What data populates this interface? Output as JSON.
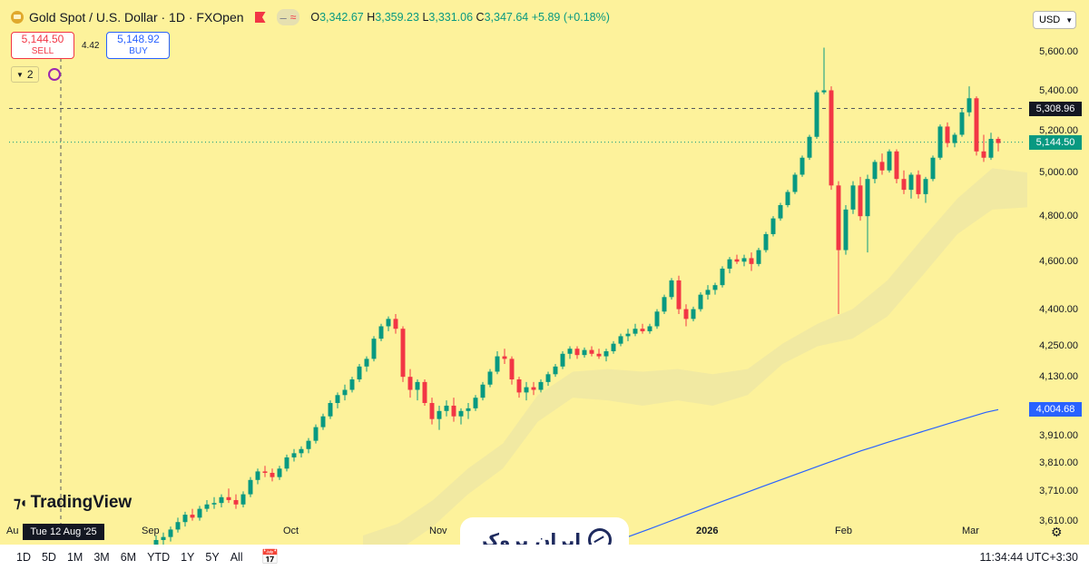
{
  "header": {
    "title": "Gold Spot / U.S. Dollar · 1D · FXOpen",
    "ohlc_o_label": "O",
    "ohlc_o": "3,342.67",
    "ohlc_h_label": "H",
    "ohlc_h": "3,359.23",
    "ohlc_l_label": "L",
    "ohlc_l": "3,331.06",
    "ohlc_c_label": "C",
    "ohlc_c": "3,347.64",
    "ohlc_change": "+5.89 (+0.18%)",
    "pill_icon": "≈"
  },
  "trade": {
    "sell_price": "5,144.50",
    "sell_label": "SELL",
    "spread": "4.42",
    "buy_price": "5,148.92",
    "buy_label": "BUY"
  },
  "indicators": {
    "count": "2"
  },
  "currency": "USD",
  "price_axis": {
    "labels": [
      "5,600.00",
      "5,400.00",
      "5,200.00",
      "5,000.00",
      "4,800.00",
      "4,600.00",
      "4,400.00",
      "4,250.00",
      "4,130.00",
      "3,910.00",
      "3,810.00",
      "3,710.00",
      "3,610.00"
    ],
    "crosshair_price": "5,308.96",
    "last_price": "5,144.50",
    "ma_price": "4,004.68"
  },
  "time_axis": {
    "labels": [
      "Au",
      "Sep",
      "Oct",
      "Nov",
      "2026",
      "Feb",
      "Mar"
    ],
    "crosshair_date": "Tue 12 Aug '25"
  },
  "watermark": "TradingView",
  "brand": "ایران بروکر",
  "range_buttons": [
    "1D",
    "5D",
    "1M",
    "3M",
    "6M",
    "YTD",
    "1Y",
    "5Y",
    "All"
  ],
  "clock": "11:34:44 UTC+3:30",
  "colors": {
    "bg": "#fdf29b",
    "up": "#089981",
    "down": "#f23645",
    "ma": "#2962ff",
    "cloud": "#efe8a3"
  },
  "chart_data": {
    "type": "candlestick",
    "symbol": "Gold Spot / U.S. Dollar",
    "interval": "1D",
    "ylim": [
      3560,
      5680
    ],
    "log_scale": true,
    "series": [
      {
        "name": "XAUUSD",
        "values": [
          [
            3525,
            3560,
            3510,
            3545
          ],
          [
            3545,
            3570,
            3530,
            3555
          ],
          [
            3555,
            3590,
            3540,
            3580
          ],
          [
            3580,
            3620,
            3570,
            3605
          ],
          [
            3605,
            3640,
            3590,
            3630
          ],
          [
            3630,
            3650,
            3610,
            3620
          ],
          [
            3620,
            3660,
            3610,
            3650
          ],
          [
            3650,
            3680,
            3640,
            3665
          ],
          [
            3665,
            3690,
            3650,
            3670
          ],
          [
            3670,
            3700,
            3655,
            3690
          ],
          [
            3690,
            3720,
            3670,
            3680
          ],
          [
            3680,
            3700,
            3650,
            3665
          ],
          [
            3665,
            3710,
            3655,
            3700
          ],
          [
            3700,
            3760,
            3690,
            3750
          ],
          [
            3750,
            3790,
            3735,
            3780
          ],
          [
            3780,
            3800,
            3760,
            3775
          ],
          [
            3775,
            3790,
            3745,
            3760
          ],
          [
            3760,
            3800,
            3750,
            3790
          ],
          [
            3790,
            3840,
            3780,
            3830
          ],
          [
            3830,
            3860,
            3815,
            3845
          ],
          [
            3845,
            3870,
            3830,
            3860
          ],
          [
            3860,
            3900,
            3845,
            3890
          ],
          [
            3890,
            3950,
            3880,
            3940
          ],
          [
            3940,
            3990,
            3930,
            3980
          ],
          [
            3980,
            4040,
            3970,
            4030
          ],
          [
            4030,
            4070,
            4010,
            4060
          ],
          [
            4060,
            4100,
            4040,
            4080
          ],
          [
            4080,
            4130,
            4070,
            4120
          ],
          [
            4120,
            4180,
            4110,
            4170
          ],
          [
            4170,
            4210,
            4150,
            4200
          ],
          [
            4200,
            4290,
            4190,
            4280
          ],
          [
            4280,
            4340,
            4270,
            4330
          ],
          [
            4330,
            4370,
            4310,
            4360
          ],
          [
            4360,
            4380,
            4300,
            4320
          ],
          [
            4320,
            4330,
            4110,
            4130
          ],
          [
            4130,
            4160,
            4050,
            4080
          ],
          [
            4080,
            4120,
            4040,
            4110
          ],
          [
            4110,
            4120,
            4020,
            4030
          ],
          [
            4030,
            4050,
            3950,
            3970
          ],
          [
            3970,
            4020,
            3930,
            4000
          ],
          [
            4000,
            4040,
            3980,
            4020
          ],
          [
            4020,
            4050,
            3960,
            3980
          ],
          [
            3980,
            4010,
            3950,
            4000
          ],
          [
            4000,
            4030,
            3970,
            4010
          ],
          [
            4010,
            4060,
            4000,
            4050
          ],
          [
            4050,
            4110,
            4040,
            4100
          ],
          [
            4100,
            4160,
            4090,
            4150
          ],
          [
            4150,
            4230,
            4140,
            4210
          ],
          [
            4210,
            4240,
            4180,
            4200
          ],
          [
            4200,
            4210,
            4100,
            4120
          ],
          [
            4120,
            4130,
            4050,
            4070
          ],
          [
            4070,
            4110,
            4040,
            4090
          ],
          [
            4090,
            4110,
            4060,
            4080
          ],
          [
            4080,
            4120,
            4070,
            4110
          ],
          [
            4110,
            4150,
            4095,
            4140
          ],
          [
            4140,
            4180,
            4130,
            4170
          ],
          [
            4170,
            4230,
            4160,
            4220
          ],
          [
            4220,
            4250,
            4200,
            4240
          ],
          [
            4240,
            4250,
            4200,
            4215
          ],
          [
            4215,
            4245,
            4205,
            4235
          ],
          [
            4235,
            4250,
            4210,
            4220
          ],
          [
            4220,
            4240,
            4200,
            4210
          ],
          [
            4210,
            4240,
            4190,
            4230
          ],
          [
            4230,
            4270,
            4220,
            4260
          ],
          [
            4260,
            4300,
            4250,
            4290
          ],
          [
            4290,
            4320,
            4270,
            4300
          ],
          [
            4300,
            4340,
            4290,
            4320
          ],
          [
            4320,
            4340,
            4300,
            4310
          ],
          [
            4310,
            4340,
            4300,
            4330
          ],
          [
            4330,
            4400,
            4320,
            4390
          ],
          [
            4390,
            4460,
            4380,
            4450
          ],
          [
            4450,
            4530,
            4440,
            4520
          ],
          [
            4520,
            4540,
            4380,
            4400
          ],
          [
            4400,
            4420,
            4330,
            4360
          ],
          [
            4360,
            4410,
            4350,
            4400
          ],
          [
            4400,
            4470,
            4390,
            4460
          ],
          [
            4460,
            4500,
            4440,
            4480
          ],
          [
            4480,
            4510,
            4460,
            4500
          ],
          [
            4500,
            4580,
            4490,
            4570
          ],
          [
            4570,
            4620,
            4550,
            4610
          ],
          [
            4610,
            4630,
            4590,
            4600
          ],
          [
            4600,
            4630,
            4580,
            4615
          ],
          [
            4615,
            4640,
            4560,
            4590
          ],
          [
            4590,
            4660,
            4580,
            4650
          ],
          [
            4650,
            4730,
            4640,
            4720
          ],
          [
            4720,
            4800,
            4710,
            4790
          ],
          [
            4790,
            4860,
            4780,
            4850
          ],
          [
            4850,
            4920,
            4840,
            4910
          ],
          [
            4910,
            5000,
            4900,
            4990
          ],
          [
            4990,
            5080,
            4980,
            5070
          ],
          [
            5070,
            5180,
            5060,
            5170
          ],
          [
            5170,
            5400,
            5160,
            5390
          ],
          [
            5390,
            5620,
            5380,
            5400
          ],
          [
            5400,
            5420,
            4920,
            4940
          ],
          [
            4940,
            4960,
            4380,
            4650
          ],
          [
            4650,
            4850,
            4630,
            4830
          ],
          [
            4830,
            4960,
            4810,
            4940
          ],
          [
            4940,
            4980,
            4780,
            4800
          ],
          [
            4800,
            4990,
            4640,
            4970
          ],
          [
            4970,
            5060,
            4950,
            5050
          ],
          [
            5050,
            5090,
            4990,
            5010
          ],
          [
            5010,
            5110,
            5000,
            5100
          ],
          [
            5100,
            5110,
            4950,
            4970
          ],
          [
            4970,
            5010,
            4900,
            4920
          ],
          [
            4920,
            5000,
            4880,
            4990
          ],
          [
            4990,
            5010,
            4880,
            4900
          ],
          [
            4900,
            4980,
            4860,
            4970
          ],
          [
            4970,
            5080,
            4960,
            5070
          ],
          [
            5070,
            5230,
            5060,
            5220
          ],
          [
            5220,
            5240,
            5120,
            5140
          ],
          [
            5140,
            5190,
            5120,
            5180
          ],
          [
            5180,
            5310,
            5170,
            5290
          ],
          [
            5290,
            5420,
            5270,
            5360
          ],
          [
            5360,
            5370,
            5080,
            5100
          ],
          [
            5100,
            5180,
            5050,
            5070
          ],
          [
            5070,
            5190,
            5060,
            5160
          ],
          [
            5160,
            5170,
            5100,
            5140
          ]
        ]
      },
      {
        "name": "MA",
        "values": [
          3490,
          3500,
          3512,
          3525,
          3538,
          3552,
          3567,
          3582,
          3598,
          3614,
          3630,
          3646,
          3662,
          3678,
          3694,
          3710,
          3726,
          3742,
          3758,
          3774,
          3790,
          3806,
          3822,
          3838,
          3854,
          3868,
          3883,
          3897,
          3911,
          3925,
          3939,
          3953,
          3967,
          3981,
          3995,
          4005
        ]
      },
      {
        "name": "Cloud",
        "values": [
          [
            3560,
            3470
          ],
          [
            3600,
            3510
          ],
          [
            3680,
            3590
          ],
          [
            3790,
            3700
          ],
          [
            3880,
            3790
          ],
          [
            4060,
            3960
          ],
          [
            4150,
            4050
          ],
          [
            4160,
            4040
          ],
          [
            4150,
            4020
          ],
          [
            4160,
            4040
          ],
          [
            4140,
            4020
          ],
          [
            4160,
            4060
          ],
          [
            4260,
            4180
          ],
          [
            4340,
            4250
          ],
          [
            4400,
            4280
          ],
          [
            4520,
            4370
          ],
          [
            4700,
            4540
          ],
          [
            4880,
            4720
          ],
          [
            5020,
            4830
          ],
          [
            5000,
            4840
          ]
        ]
      }
    ]
  }
}
